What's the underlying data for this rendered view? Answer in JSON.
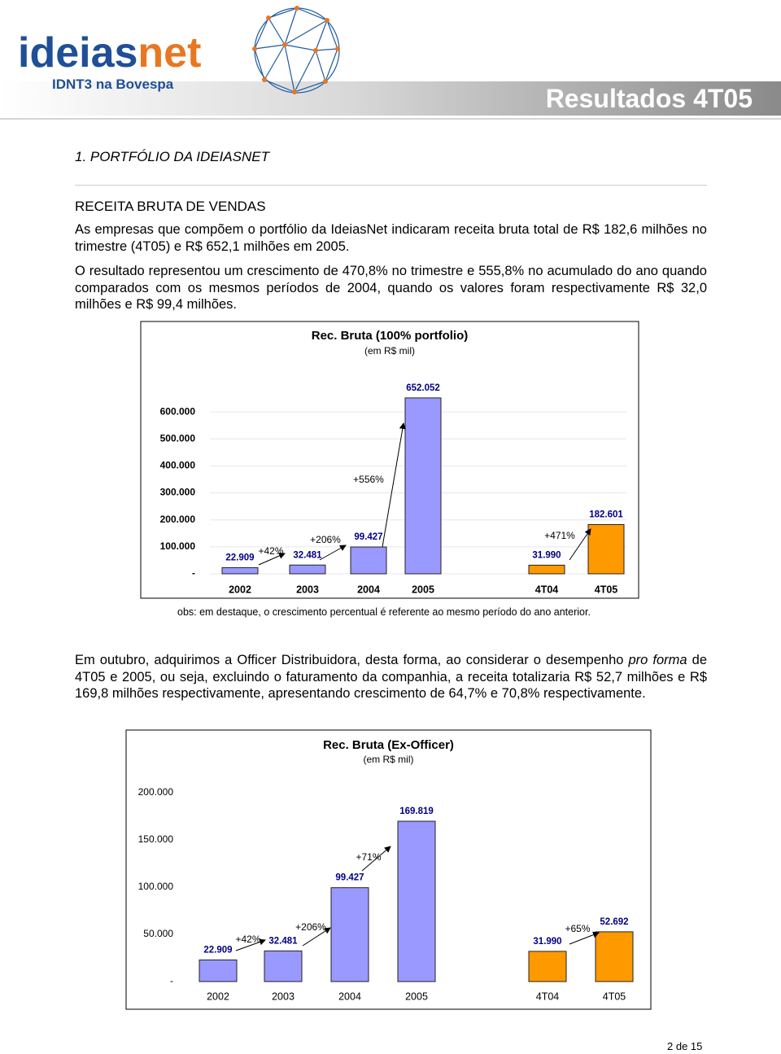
{
  "header": {
    "logo_left": "ideias",
    "logo_right": "net",
    "tagline": "IDNT3 na Bovespa",
    "banner": "Resultados 4T05"
  },
  "section_title": "1.   PORTFÓLIO DA IDEIASNET",
  "subsection_title": "RECEITA BRUTA DE VENDAS",
  "paragraphs": [
    "As empresas que compõem o portfólio da IdeiasNet indicaram receita bruta total de R$ 182,6 milhões no trimestre (4T05) e R$ 652,1 milhões em 2005.",
    "O resultado representou um crescimento de 470,8% no trimestre e 555,8% no acumulado do ano quando comparados com os mesmos períodos de 2004, quando os valores foram respectivamente R$ 32,0 milhões e R$ 99,4 milhões."
  ],
  "note": "obs: em destaque, o crescimento percentual é referente ao mesmo período do ano anterior.",
  "paragraph3": [
    "Em outubro, adquirimos a Officer Distribuidora, desta forma, ao considerar o desempenho ",
    "pro forma",
    " de 4T05 e 2005, ou seja, excluindo o faturamento da companhia, a receita totalizaria R$ 52,7 milhões e R$ 169,8 milhões respectivamente, apresentando crescimento de 64,7% e 70,8% respectivamente."
  ],
  "chart_data": [
    {
      "type": "bar",
      "title": "Rec. Bruta (100% portfolio)",
      "subtitle": "(em R$ mil)",
      "categories": [
        "2002",
        "2003",
        "2004",
        "2005",
        "4T04",
        "4T05"
      ],
      "values": [
        22909,
        32481,
        99427,
        652052,
        31990,
        182601
      ],
      "value_labels": [
        "22.909",
        "32.481",
        "99.427",
        "652.052",
        "31.990",
        "182.601"
      ],
      "colors": [
        "#9999ff",
        "#9999ff",
        "#9999ff",
        "#9999ff",
        "#ff9900",
        "#ff9900"
      ],
      "ylim": [
        0,
        700000
      ],
      "yticks": [
        {
          "value": 0,
          "label": "-"
        },
        {
          "value": 100000,
          "label": "100.000"
        },
        {
          "value": 200000,
          "label": "200.000"
        },
        {
          "value": 300000,
          "label": "300.000"
        },
        {
          "value": 400000,
          "label": "400.000"
        },
        {
          "value": 500000,
          "label": "500.000"
        },
        {
          "value": 600000,
          "label": "600.000"
        }
      ],
      "grid": true,
      "annotations": [
        "+42%",
        "+206%",
        "+556%",
        "+471%"
      ]
    },
    {
      "type": "bar",
      "title": "Rec. Bruta (Ex-Officer)",
      "subtitle": "(em R$ mil)",
      "categories": [
        "2002",
        "2003",
        "2004",
        "2005",
        "4T04",
        "4T05"
      ],
      "values": [
        22909,
        32481,
        99427,
        169819,
        31990,
        52692
      ],
      "value_labels": [
        "22.909",
        "32.481",
        "99.427",
        "169.819",
        "31.990",
        "52.692"
      ],
      "colors": [
        "#9999ff",
        "#9999ff",
        "#9999ff",
        "#9999ff",
        "#ff9900",
        "#ff9900"
      ],
      "ylim": [
        0,
        200000
      ],
      "yticks": [
        {
          "value": 0,
          "label": "-"
        },
        {
          "value": 50000,
          "label": "50.000"
        },
        {
          "value": 100000,
          "label": "100.000"
        },
        {
          "value": 150000,
          "label": "150.000"
        },
        {
          "value": 200000,
          "label": "200.000"
        }
      ],
      "grid": false,
      "annotations": [
        "+42%",
        "+206%",
        "+71%",
        "+65%"
      ]
    }
  ],
  "footer": "2 de 15"
}
